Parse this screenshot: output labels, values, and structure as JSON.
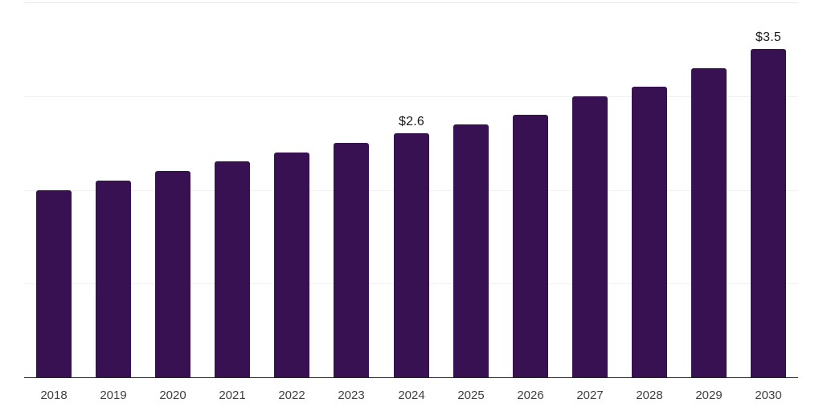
{
  "chart_data": {
    "type": "bar",
    "title": "",
    "xlabel": "",
    "ylabel": "",
    "categories": [
      "2018",
      "2019",
      "2020",
      "2021",
      "2022",
      "2023",
      "2024",
      "2025",
      "2026",
      "2027",
      "2028",
      "2029",
      "2030"
    ],
    "values": [
      2.0,
      2.1,
      2.2,
      2.3,
      2.4,
      2.5,
      2.6,
      2.7,
      2.8,
      3.0,
      3.1,
      3.3,
      3.5
    ],
    "data_labels": [
      "",
      "",
      "",
      "",
      "",
      "",
      "$2.6",
      "",
      "",
      "",
      "",
      "",
      "$3.5"
    ],
    "ylim": [
      0,
      4
    ],
    "gridline_values": [
      1,
      2,
      3,
      4
    ],
    "grid": "horizontal-only",
    "legend": "none",
    "colors": {
      "bar": "#371151",
      "gridline": "#f1f1f1",
      "top_gridline": "#e7e7e7",
      "axis_line": "#262626",
      "tick_label": "#404040",
      "value_label": "#1a1a1a",
      "background": "#ffffff"
    }
  }
}
